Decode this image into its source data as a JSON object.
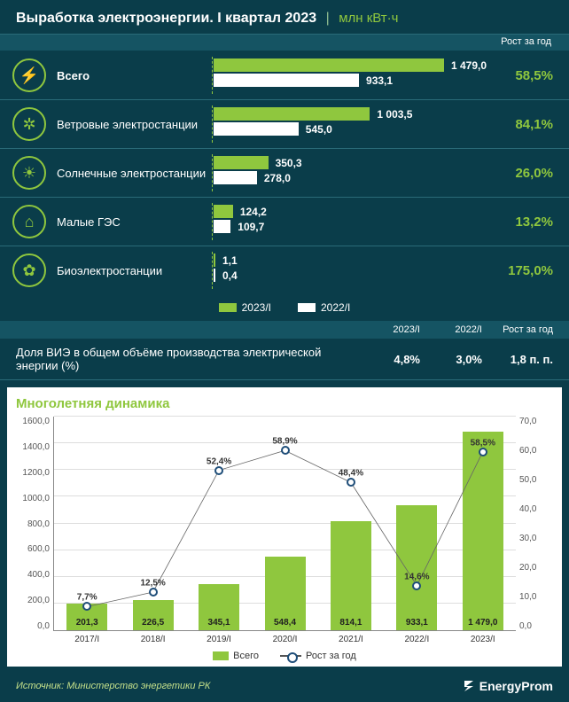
{
  "header": {
    "title": "Выработка электроэнергии. I квартал 2023",
    "unit": "млн кВт·ч",
    "growth_label": "Рост за год"
  },
  "bars": {
    "max_value": 1479.0,
    "color_current": "#8fc73e",
    "color_prev": "#ffffff",
    "rows": [
      {
        "icon": "⚡",
        "label": "Всего",
        "v2023": 1479.0,
        "v2023_txt": "1 479,0",
        "v2022": 933.1,
        "v2022_txt": "933,1",
        "growth": "58,5%"
      },
      {
        "icon": "✲",
        "label": "Ветровые электростанции",
        "v2023": 1003.5,
        "v2023_txt": "1 003,5",
        "v2022": 545.0,
        "v2022_txt": "545,0",
        "growth": "84,1%"
      },
      {
        "icon": "☀",
        "label": "Солнечные электростанции",
        "v2023": 350.3,
        "v2023_txt": "350,3",
        "v2022": 278.0,
        "v2022_txt": "278,0",
        "growth": "26,0%"
      },
      {
        "icon": "⌂",
        "label": "Малые ГЭС",
        "v2023": 124.2,
        "v2023_txt": "124,2",
        "v2022": 109.7,
        "v2022_txt": "109,7",
        "growth": "13,2%"
      },
      {
        "icon": "✿",
        "label": "Биоэлектростанции",
        "v2023": 1.1,
        "v2023_txt": "1,1",
        "v2022": 0.4,
        "v2022_txt": "0,4",
        "growth": "175,0%"
      }
    ],
    "legend_current": "2023/I",
    "legend_prev": "2022/I"
  },
  "share": {
    "col_2023": "2023/I",
    "col_2022": "2022/I",
    "col_growth": "Рост за год",
    "label": "Доля ВИЭ в общем объёме производства электрической энергии (%)",
    "v2023": "4,8%",
    "v2022": "3,0%",
    "growth": "1,8 п. п."
  },
  "chart": {
    "title": "Многолетняя динамика",
    "y_left_max": 1600,
    "y_left_step": 200,
    "y_right_max": 70,
    "y_right_step": 10,
    "bar_color": "#8fc73e",
    "line_color": "#666666",
    "marker_border": "#1f4e79",
    "marker_fill": "#ffffff",
    "categories": [
      "2017/I",
      "2018/I",
      "2019/I",
      "2020/I",
      "2021/I",
      "2022/I",
      "2023/I"
    ],
    "bar_values": [
      201.3,
      226.5,
      345.1,
      548.4,
      814.1,
      933.1,
      1479.0
    ],
    "bar_value_labels": [
      "201,3",
      "226,5",
      "345,1",
      "548,4",
      "814,1",
      "933,1",
      "1 479,0"
    ],
    "line_values": [
      7.7,
      12.5,
      52.4,
      58.9,
      48.4,
      14.6,
      58.5
    ],
    "line_value_labels": [
      "7,7%",
      "12,5%",
      "52,4%",
      "58,9%",
      "48,4%",
      "14,6%",
      "58,5%"
    ],
    "legend_bar": "Всего",
    "legend_line": "Рост за год"
  },
  "footer": {
    "source": "Источник: Министерство энергетики РК",
    "brand": "EnergyProm"
  }
}
